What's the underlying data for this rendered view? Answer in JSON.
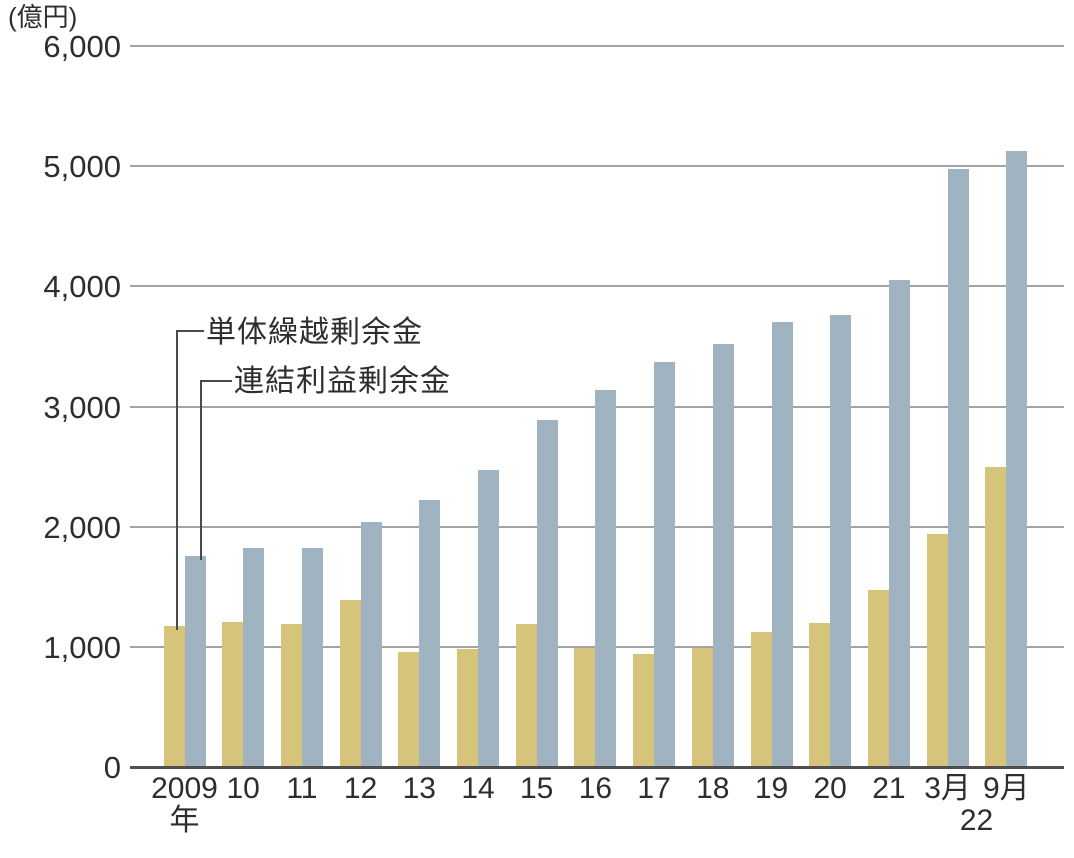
{
  "chart_data": {
    "type": "bar",
    "title": "",
    "unit_label": "(億円)",
    "xlabel": "",
    "ylabel": "億円",
    "ylim": [
      0,
      6000
    ],
    "y_ticks": [
      0,
      1000,
      2000,
      3000,
      4000,
      5000,
      6000
    ],
    "y_tick_labels": [
      "0",
      "1,000",
      "2,000",
      "3,000",
      "4,000",
      "5,000",
      "6,000"
    ],
    "grid": true,
    "legend_position": "callout-annotations-inside-plot",
    "categories": [
      "2009",
      "10",
      "11",
      "12",
      "13",
      "14",
      "15",
      "16",
      "17",
      "18",
      "19",
      "20",
      "21",
      "3月",
      "9月"
    ],
    "x_sub_labels": {
      "first_category_suffix": "年",
      "last_group_year": "22"
    },
    "series": [
      {
        "name": "単体繰越剰余金",
        "color": "#d6c47b",
        "values": [
          1170,
          1210,
          1190,
          1390,
          960,
          980,
          1190,
          990,
          940,
          990,
          1120,
          1200,
          1470,
          1940,
          2500
        ]
      },
      {
        "name": "連結利益剰余金",
        "color": "#9fb4c0",
        "values": [
          1760,
          1820,
          1820,
          2040,
          2220,
          2470,
          2890,
          3140,
          3370,
          3520,
          3700,
          3760,
          4050,
          4980,
          5130
        ]
      }
    ]
  },
  "colors": {
    "background": "#ffffff",
    "gridline": "#a3a3a3",
    "axis_line": "#4f4f4f",
    "text": "#2e2e2e",
    "callout_line": "#4a4a4a"
  }
}
